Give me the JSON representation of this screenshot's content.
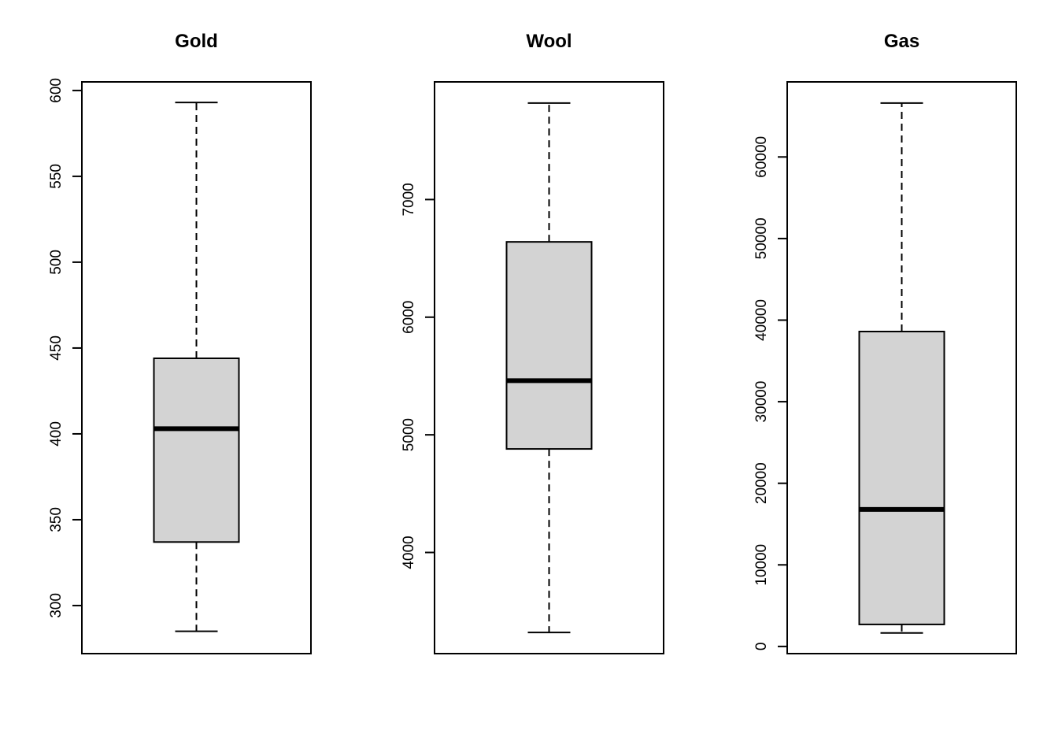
{
  "chart_data": [
    {
      "type": "box",
      "title": "Gold",
      "xlabel": "",
      "ylabel": "",
      "yticks": [
        300,
        350,
        400,
        450,
        500,
        550,
        600
      ],
      "ylim": [
        272,
        605
      ],
      "box": {
        "whisker_low": 285,
        "q1": 337,
        "median": 403,
        "q3": 444,
        "whisker_high": 593
      },
      "grid": false
    },
    {
      "type": "box",
      "title": "Wool",
      "xlabel": "",
      "ylabel": "",
      "yticks": [
        4000,
        5000,
        6000,
        7000
      ],
      "ylim": [
        3140,
        8000
      ],
      "box": {
        "whisker_low": 3320,
        "q1": 4880,
        "median": 5460,
        "q3": 6640,
        "whisker_high": 7820
      },
      "grid": false
    },
    {
      "type": "box",
      "title": "Gas",
      "xlabel": "",
      "ylabel": "",
      "yticks": [
        0,
        10000,
        20000,
        30000,
        40000,
        50000,
        60000
      ],
      "ylim": [
        -880,
        69200
      ],
      "box": {
        "whisker_low": 1650,
        "q1": 2700,
        "median": 16800,
        "q3": 38600,
        "whisker_high": 66600
      },
      "grid": false
    }
  ],
  "colors": {
    "box_fill": "#d3d3d3",
    "stroke": "#000000",
    "background": "#ffffff"
  }
}
